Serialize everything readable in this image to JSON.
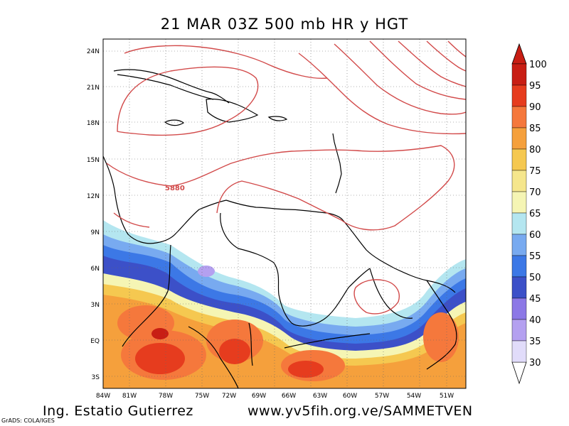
{
  "title": "21 MAR 03Z  500 mb  HR y HGT",
  "credit": "Ing. Estatio Gutierrez",
  "website": "www.yv5fih.org.ve/SAMMETVEN",
  "software": "GrADS: COLA/IGES",
  "contour_label": "5880",
  "lat_labels": [
    "24N",
    "21N",
    "18N",
    "15N",
    "12N",
    "9N",
    "6N",
    "3N",
    "EQ",
    "3S"
  ],
  "lon_labels": [
    "84W",
    "81W",
    "78W",
    "75W",
    "72W",
    "69W",
    "66W",
    "63W",
    "60W",
    "57W",
    "54W",
    "51W"
  ],
  "colorbar": {
    "levels": [
      "30",
      "35",
      "40",
      "45",
      "50",
      "55",
      "60",
      "65",
      "70",
      "75",
      "80",
      "85",
      "90",
      "95",
      "100"
    ],
    "colors": [
      "#ffffff",
      "#e1dcfa",
      "#b4a0f0",
      "#8c78e6",
      "#3c50c8",
      "#3c78e6",
      "#78aaf0",
      "#b4e6f0",
      "#f5f5b4",
      "#f5e68c",
      "#f5c850",
      "#f5a03c",
      "#f5783c",
      "#e63c1e",
      "#c81e14"
    ]
  }
}
